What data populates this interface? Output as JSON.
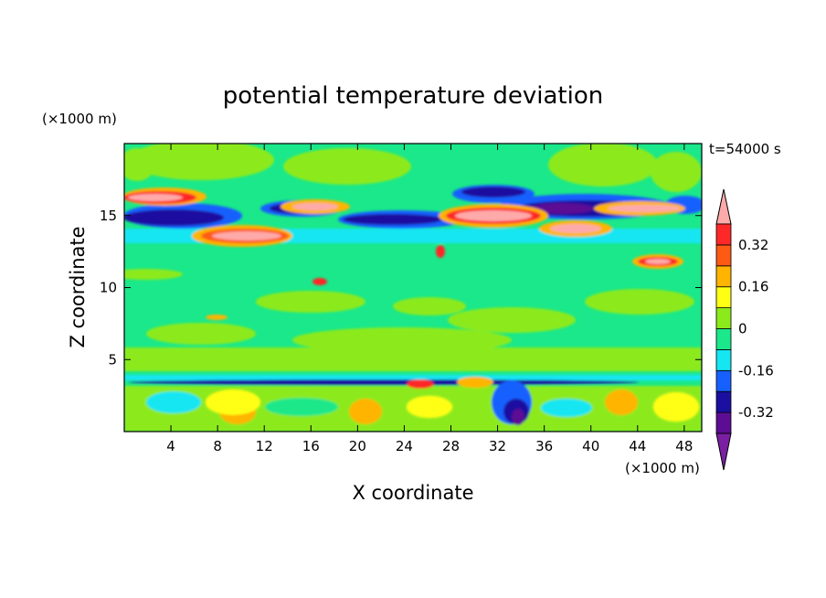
{
  "chart_data": {
    "type": "heatmap",
    "title": "potential temperature deviation",
    "xlabel": "X coordinate",
    "ylabel": "Z coordinate",
    "x_unit": "(×1000 m)",
    "y_unit": "(×1000 m)",
    "time_label": "t=54000 s",
    "xlim": [
      0,
      49.5
    ],
    "ylim": [
      0,
      20
    ],
    "x_ticks": [
      4,
      8,
      12,
      16,
      20,
      24,
      28,
      32,
      36,
      40,
      44,
      48
    ],
    "y_ticks": [
      5,
      10,
      15
    ],
    "colorbar": {
      "levels": [
        -0.4,
        -0.32,
        -0.24,
        -0.16,
        -0.08,
        0,
        0.08,
        0.16,
        0.24,
        0.32,
        0.4
      ],
      "labels": [
        "0.32",
        "0.16",
        "0",
        "-0.16",
        "-0.32"
      ],
      "label_values": [
        0.32,
        0.16,
        0,
        -0.16,
        -0.32
      ],
      "colors_low_to_high": [
        "#7a1fa2",
        "#5c0d94",
        "#1a0fa0",
        "#1560ff",
        "#14e6f2",
        "#1ae88a",
        "#8cea1a",
        "#ffff14",
        "#ffb400",
        "#ff5a14",
        "#ff2828",
        "#ffaaaa"
      ]
    }
  }
}
